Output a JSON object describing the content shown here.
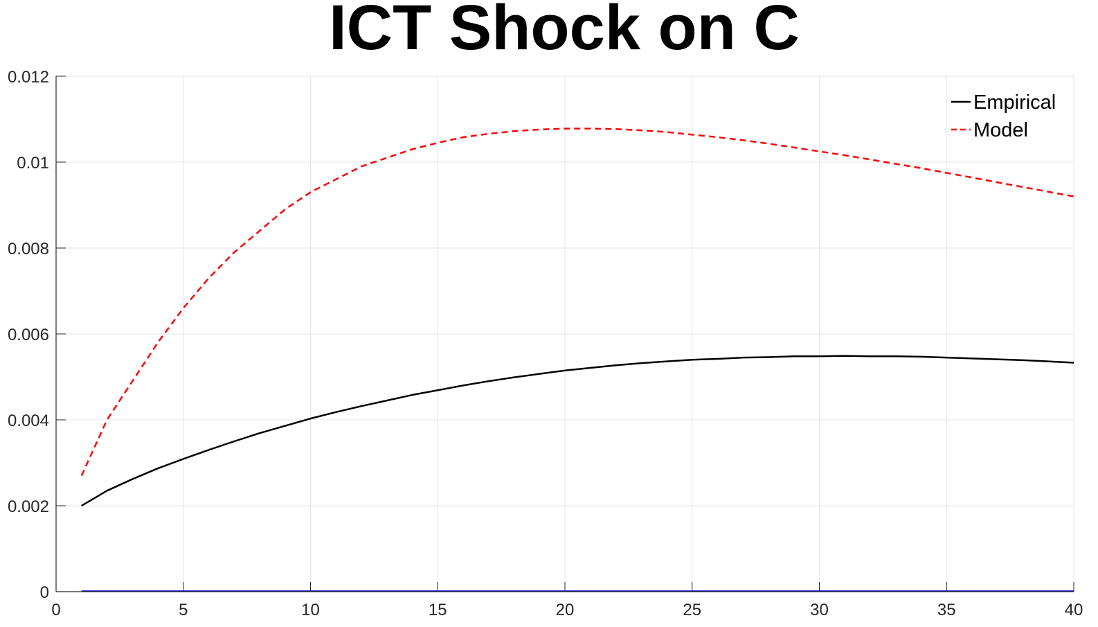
{
  "chart_data": {
    "type": "line",
    "title": "ICT Shock on C",
    "xlabel": "",
    "ylabel": "",
    "xlim": [
      0,
      40
    ],
    "ylim": [
      0,
      0.012
    ],
    "x_ticks": [
      0,
      5,
      10,
      15,
      20,
      25,
      30,
      35,
      40
    ],
    "y_ticks": [
      0,
      0.002,
      0.004,
      0.006,
      0.008,
      0.01,
      0.012
    ],
    "x_tick_labels": [
      "0",
      "5",
      "10",
      "15",
      "20",
      "25",
      "30",
      "35",
      "40"
    ],
    "y_tick_labels": [
      "0",
      "0.002",
      "0.004",
      "0.006",
      "0.008",
      "0.01",
      "0.012"
    ],
    "grid": true,
    "legend_position": "top-right",
    "zero_line_color": "#0000cc",
    "series": [
      {
        "name": "Empirical",
        "color": "#000000",
        "style": "solid",
        "x": [
          1,
          2,
          3,
          4,
          5,
          6,
          7,
          8,
          9,
          10,
          11,
          12,
          13,
          14,
          15,
          16,
          17,
          18,
          19,
          20,
          21,
          22,
          23,
          24,
          25,
          26,
          27,
          28,
          29,
          30,
          31,
          32,
          33,
          34,
          35,
          36,
          37,
          38,
          39,
          40
        ],
        "values": [
          0.002,
          0.00235,
          0.00262,
          0.00287,
          0.00309,
          0.0033,
          0.0035,
          0.00369,
          0.00386,
          0.00403,
          0.00418,
          0.00432,
          0.00445,
          0.00458,
          0.00469,
          0.0048,
          0.0049,
          0.00499,
          0.00507,
          0.00515,
          0.00521,
          0.00527,
          0.00532,
          0.00536,
          0.0054,
          0.00542,
          0.00545,
          0.00546,
          0.00548,
          0.00548,
          0.00549,
          0.00548,
          0.00548,
          0.00547,
          0.00545,
          0.00543,
          0.00541,
          0.00539,
          0.00536,
          0.00533
        ]
      },
      {
        "name": "Model",
        "color": "#ff0000",
        "style": "dashed",
        "x": [
          1,
          2,
          3,
          4,
          5,
          6,
          7,
          8,
          9,
          10,
          11,
          12,
          13,
          14,
          15,
          16,
          17,
          18,
          19,
          20,
          21,
          22,
          23,
          24,
          25,
          26,
          27,
          28,
          29,
          30,
          31,
          32,
          33,
          34,
          35,
          36,
          37,
          38,
          39,
          40
        ],
        "values": [
          0.0027,
          0.004,
          0.0049,
          0.0058,
          0.0066,
          0.0073,
          0.0079,
          0.0084,
          0.0089,
          0.0093,
          0.0096,
          0.0099,
          0.0101,
          0.0103,
          0.01045,
          0.01058,
          0.01066,
          0.01072,
          0.01076,
          0.01078,
          0.01078,
          0.01077,
          0.01074,
          0.0107,
          0.01064,
          0.01058,
          0.01051,
          0.01043,
          0.01034,
          0.01025,
          0.01016,
          0.01006,
          0.00996,
          0.00986,
          0.00975,
          0.00964,
          0.00953,
          0.00942,
          0.00931,
          0.0092
        ]
      }
    ]
  }
}
